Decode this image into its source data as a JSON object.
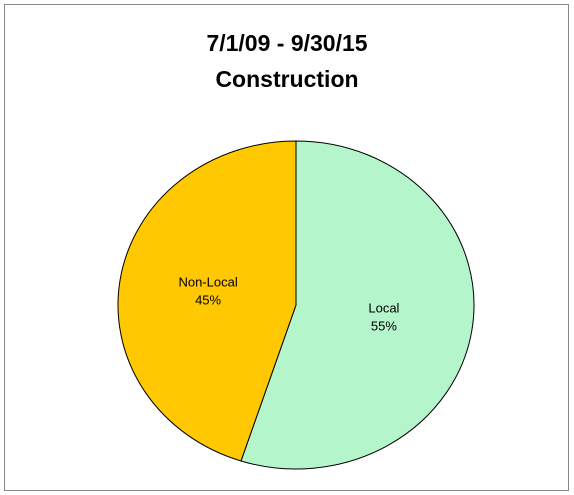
{
  "chart_data": {
    "type": "pie",
    "title": "7/1/09 - 9/30/15",
    "subtitle": "Construction",
    "categories": [
      "Local",
      "Non-Local"
    ],
    "values": [
      55,
      45
    ],
    "value_labels": [
      "55%",
      "45%"
    ],
    "colors": [
      "#b4f5cb",
      "#ffc800"
    ]
  }
}
